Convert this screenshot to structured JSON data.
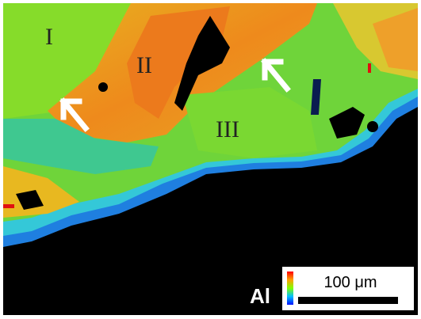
{
  "regions": {
    "labels": [
      "I",
      "II",
      "III"
    ]
  },
  "element": "Al",
  "scale_bar": {
    "label": "100 μm"
  }
}
